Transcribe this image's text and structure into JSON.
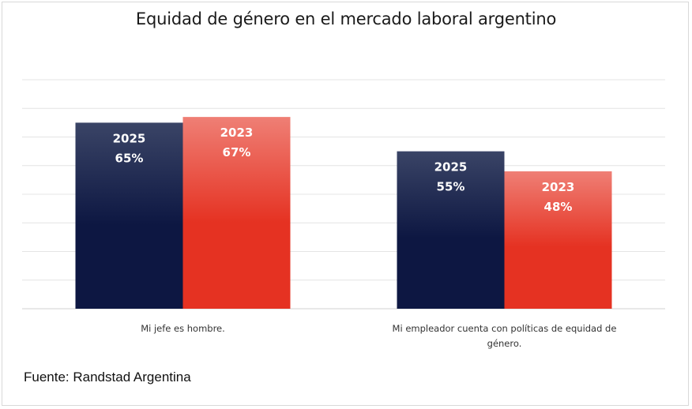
{
  "chart_data": {
    "type": "bar",
    "title": "Equidad de género en el mercado laboral argentino",
    "categories": [
      [
        "Mi jefe es hombre."
      ],
      [
        "Mi empleador cuenta con políticas de equidad de",
        "género."
      ]
    ],
    "series": [
      {
        "name": "2025",
        "values": [
          65,
          55
        ],
        "value_labels": [
          "65%",
          "55%"
        ],
        "color_top": "#3a4466",
        "color_bottom": "#0d1742"
      },
      {
        "name": "2023",
        "values": [
          67,
          48
        ],
        "value_labels": [
          "67%",
          "48%"
        ],
        "color_top": "#ef7f75",
        "color_bottom": "#e53222"
      }
    ],
    "ylim": [
      0,
      80
    ],
    "gridlines": true,
    "xlabel": "",
    "ylabel": ""
  },
  "source": "Fuente: Randstad Argentina"
}
